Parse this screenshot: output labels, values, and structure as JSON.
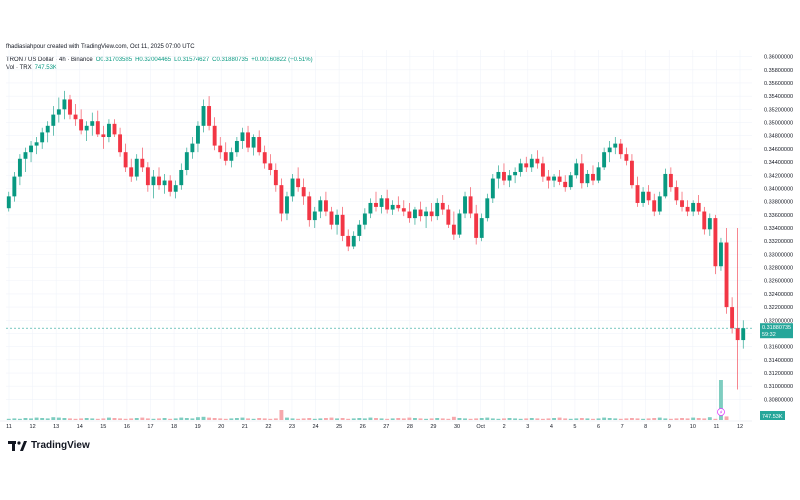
{
  "credit": "fhadiasiahpour created with TradingView.com, Oct 11, 2025 07:00 UTC",
  "legend": {
    "symbol": "TRON / US Dollar · 4h · Binance",
    "open": "O0.31703585",
    "high": "H0.32004465",
    "low": "L0.31574627",
    "close": "C0.31880735",
    "change": "+0.00160822 (+0.51%)"
  },
  "volume_legend": {
    "label": "Vol · TRX",
    "value": "747.53K"
  },
  "price_tag": {
    "price": "0.31880735",
    "countdown": "59:32"
  },
  "volume_tag": "747.53K",
  "logo_text": "TradingView",
  "colors": {
    "up": "#089981",
    "down": "#f23645",
    "up_vol": "#7ecdc0",
    "down_vol": "#f7a8ac",
    "tag": "#26a69a"
  },
  "chart_data": {
    "type": "candlestick",
    "timeframe": "4h",
    "ylim": [
      0.307,
      0.361
    ],
    "y_ticks": [
      "0.36000000",
      "0.35800000",
      "0.35600000",
      "0.35400000",
      "0.35200000",
      "0.35000000",
      "0.34800000",
      "0.34600000",
      "0.34400000",
      "0.34200000",
      "0.34000000",
      "0.33800000",
      "0.33600000",
      "0.33400000",
      "0.33200000",
      "0.33000000",
      "0.32800000",
      "0.32600000",
      "0.32400000",
      "0.32200000",
      "0.32000000",
      "0.31800000",
      "0.31600000",
      "0.31400000",
      "0.31200000",
      "0.31000000",
      "0.30800000"
    ],
    "x_ticks": [
      "11",
      "12",
      "13",
      "14",
      "15",
      "16",
      "17",
      "18",
      "19",
      "20",
      "21",
      "22",
      "23",
      "24",
      "25",
      "26",
      "27",
      "28",
      "29",
      "30",
      "Oct",
      "2",
      "3",
      "4",
      "5",
      "6",
      "7",
      "8",
      "9",
      "10",
      "11",
      "12"
    ],
    "candles": [
      [
        0.337,
        0.3395,
        0.3365,
        0.3388
      ],
      [
        0.3388,
        0.3425,
        0.338,
        0.3418
      ],
      [
        0.3418,
        0.3452,
        0.3405,
        0.3445
      ],
      [
        0.3445,
        0.3462,
        0.3425,
        0.3455
      ],
      [
        0.3455,
        0.3472,
        0.344,
        0.3465
      ],
      [
        0.3465,
        0.3478,
        0.3452,
        0.347
      ],
      [
        0.347,
        0.3492,
        0.346,
        0.3485
      ],
      [
        0.3485,
        0.3502,
        0.347,
        0.3495
      ],
      [
        0.3495,
        0.3525,
        0.348,
        0.3512
      ],
      [
        0.3512,
        0.3538,
        0.35,
        0.352
      ],
      [
        0.352,
        0.3548,
        0.3505,
        0.3535
      ],
      [
        0.3535,
        0.3542,
        0.3505,
        0.3512
      ],
      [
        0.3512,
        0.3528,
        0.3495,
        0.3505
      ],
      [
        0.3505,
        0.352,
        0.3482,
        0.3488
      ],
      [
        0.3488,
        0.3502,
        0.3472,
        0.3495
      ],
      [
        0.3495,
        0.3515,
        0.348,
        0.3502
      ],
      [
        0.3502,
        0.3518,
        0.3478,
        0.3482
      ],
      [
        0.3482,
        0.3495,
        0.346,
        0.3478
      ],
      [
        0.3478,
        0.3505,
        0.347,
        0.3498
      ],
      [
        0.3498,
        0.3505,
        0.3478,
        0.3482
      ],
      [
        0.3482,
        0.3492,
        0.3448,
        0.3455
      ],
      [
        0.3455,
        0.3468,
        0.3425,
        0.3432
      ],
      [
        0.3432,
        0.3445,
        0.341,
        0.3418
      ],
      [
        0.3418,
        0.3452,
        0.3412,
        0.3445
      ],
      [
        0.3445,
        0.3462,
        0.3425,
        0.3432
      ],
      [
        0.3432,
        0.344,
        0.3395,
        0.3405
      ],
      [
        0.3405,
        0.3428,
        0.3385,
        0.3418
      ],
      [
        0.3418,
        0.3432,
        0.3398,
        0.3405
      ],
      [
        0.3405,
        0.3422,
        0.3392,
        0.3412
      ],
      [
        0.3412,
        0.342,
        0.3388,
        0.3395
      ],
      [
        0.3395,
        0.3412,
        0.3385,
        0.3405
      ],
      [
        0.3405,
        0.3438,
        0.3398,
        0.3428
      ],
      [
        0.3428,
        0.3462,
        0.342,
        0.3455
      ],
      [
        0.3455,
        0.3478,
        0.3445,
        0.3468
      ],
      [
        0.3468,
        0.3502,
        0.3455,
        0.3495
      ],
      [
        0.3495,
        0.3535,
        0.3485,
        0.3525
      ],
      [
        0.3525,
        0.354,
        0.3488,
        0.3495
      ],
      [
        0.3495,
        0.3508,
        0.3458,
        0.3465
      ],
      [
        0.3465,
        0.3478,
        0.3445,
        0.3455
      ],
      [
        0.3455,
        0.347,
        0.3435,
        0.3442
      ],
      [
        0.3442,
        0.3462,
        0.3432,
        0.3455
      ],
      [
        0.3455,
        0.3478,
        0.3448,
        0.3472
      ],
      [
        0.3472,
        0.3492,
        0.346,
        0.3485
      ],
      [
        0.3485,
        0.3495,
        0.3455,
        0.3462
      ],
      [
        0.3462,
        0.3482,
        0.345,
        0.3478
      ],
      [
        0.3478,
        0.3488,
        0.345,
        0.3455
      ],
      [
        0.3455,
        0.3465,
        0.343,
        0.3438
      ],
      [
        0.3438,
        0.3452,
        0.342,
        0.3428
      ],
      [
        0.3428,
        0.3438,
        0.3395,
        0.3405
      ],
      [
        0.3405,
        0.3415,
        0.335,
        0.3362
      ],
      [
        0.3362,
        0.3395,
        0.3352,
        0.3388
      ],
      [
        0.3388,
        0.3422,
        0.338,
        0.3415
      ],
      [
        0.3415,
        0.3432,
        0.3395,
        0.3402
      ],
      [
        0.3402,
        0.3415,
        0.3375,
        0.3388
      ],
      [
        0.3388,
        0.3395,
        0.3342,
        0.3352
      ],
      [
        0.3352,
        0.3372,
        0.334,
        0.3365
      ],
      [
        0.3365,
        0.3388,
        0.3355,
        0.3382
      ],
      [
        0.3382,
        0.3395,
        0.3358,
        0.3365
      ],
      [
        0.3365,
        0.3372,
        0.3338,
        0.3345
      ],
      [
        0.3345,
        0.3368,
        0.333,
        0.336
      ],
      [
        0.336,
        0.3372,
        0.332,
        0.3328
      ],
      [
        0.3328,
        0.3338,
        0.3305,
        0.3312
      ],
      [
        0.3312,
        0.3335,
        0.3308,
        0.3328
      ],
      [
        0.3328,
        0.3352,
        0.332,
        0.3345
      ],
      [
        0.3345,
        0.337,
        0.3338,
        0.3362
      ],
      [
        0.3362,
        0.3385,
        0.3355,
        0.3378
      ],
      [
        0.3378,
        0.3395,
        0.3365,
        0.3372
      ],
      [
        0.3372,
        0.339,
        0.3362,
        0.3385
      ],
      [
        0.3385,
        0.3398,
        0.3362,
        0.3368
      ],
      [
        0.3368,
        0.3382,
        0.336,
        0.3375
      ],
      [
        0.3375,
        0.3388,
        0.3365,
        0.337
      ],
      [
        0.337,
        0.3382,
        0.3358,
        0.3365
      ],
      [
        0.3365,
        0.3378,
        0.3348,
        0.3355
      ],
      [
        0.3355,
        0.3372,
        0.3345,
        0.3368
      ],
      [
        0.3368,
        0.338,
        0.335,
        0.3358
      ],
      [
        0.3358,
        0.3372,
        0.334,
        0.3365
      ],
      [
        0.3365,
        0.3378,
        0.335,
        0.3358
      ],
      [
        0.3358,
        0.3385,
        0.3352,
        0.3378
      ],
      [
        0.3378,
        0.339,
        0.336,
        0.3368
      ],
      [
        0.3368,
        0.3375,
        0.334,
        0.3345
      ],
      [
        0.3345,
        0.3365,
        0.3322,
        0.333
      ],
      [
        0.333,
        0.3368,
        0.3325,
        0.3362
      ],
      [
        0.3362,
        0.3395,
        0.3355,
        0.3388
      ],
      [
        0.3388,
        0.3402,
        0.3355,
        0.3362
      ],
      [
        0.3362,
        0.3375,
        0.3315,
        0.3325
      ],
      [
        0.3325,
        0.3362,
        0.332,
        0.3355
      ],
      [
        0.3355,
        0.3392,
        0.335,
        0.3385
      ],
      [
        0.3385,
        0.3422,
        0.3378,
        0.3415
      ],
      [
        0.3415,
        0.3435,
        0.34,
        0.3425
      ],
      [
        0.3425,
        0.3438,
        0.3405,
        0.3412
      ],
      [
        0.3412,
        0.3428,
        0.3402,
        0.342
      ],
      [
        0.342,
        0.3432,
        0.3408,
        0.3425
      ],
      [
        0.3425,
        0.3445,
        0.3418,
        0.3438
      ],
      [
        0.3438,
        0.3448,
        0.3425,
        0.3432
      ],
      [
        0.3432,
        0.3452,
        0.3425,
        0.3445
      ],
      [
        0.3445,
        0.3458,
        0.343,
        0.3438
      ],
      [
        0.3438,
        0.3448,
        0.341,
        0.3418
      ],
      [
        0.3418,
        0.3428,
        0.34,
        0.3412
      ],
      [
        0.3412,
        0.3422,
        0.3402,
        0.3418
      ],
      [
        0.3418,
        0.3428,
        0.3405,
        0.341
      ],
      [
        0.341,
        0.342,
        0.3395,
        0.3402
      ],
      [
        0.3402,
        0.3425,
        0.3398,
        0.342
      ],
      [
        0.342,
        0.3445,
        0.3415,
        0.3438
      ],
      [
        0.3438,
        0.3452,
        0.34,
        0.3408
      ],
      [
        0.3408,
        0.3428,
        0.3402,
        0.3422
      ],
      [
        0.3422,
        0.3435,
        0.3405,
        0.3412
      ],
      [
        0.3412,
        0.344,
        0.3408,
        0.3432
      ],
      [
        0.3432,
        0.3462,
        0.3428,
        0.3455
      ],
      [
        0.3455,
        0.3472,
        0.344,
        0.3462
      ],
      [
        0.3462,
        0.3478,
        0.3452,
        0.3468
      ],
      [
        0.3468,
        0.3475,
        0.3445,
        0.3452
      ],
      [
        0.3452,
        0.3462,
        0.3435,
        0.3442
      ],
      [
        0.3442,
        0.3452,
        0.34,
        0.3405
      ],
      [
        0.3405,
        0.3418,
        0.3372,
        0.3378
      ],
      [
        0.3378,
        0.3402,
        0.3372,
        0.3395
      ],
      [
        0.3395,
        0.3405,
        0.3375,
        0.3382
      ],
      [
        0.3382,
        0.3392,
        0.3358,
        0.3365
      ],
      [
        0.3365,
        0.3395,
        0.336,
        0.3388
      ],
      [
        0.3388,
        0.343,
        0.3385,
        0.3422
      ],
      [
        0.3422,
        0.3432,
        0.3395,
        0.3402
      ],
      [
        0.3402,
        0.3412,
        0.3375,
        0.3382
      ],
      [
        0.3382,
        0.3395,
        0.3365,
        0.3372
      ],
      [
        0.3372,
        0.3382,
        0.3358,
        0.3365
      ],
      [
        0.3365,
        0.3382,
        0.3358,
        0.3378
      ],
      [
        0.3378,
        0.339,
        0.336,
        0.3365
      ],
      [
        0.3365,
        0.3372,
        0.333,
        0.3338
      ],
      [
        0.3338,
        0.3362,
        0.3328,
        0.3355
      ],
      [
        0.3355,
        0.336,
        0.327,
        0.3282
      ],
      [
        0.3282,
        0.3325,
        0.3275,
        0.3318
      ],
      [
        0.3318,
        0.334,
        0.321,
        0.322
      ],
      [
        0.322,
        0.3235,
        0.318,
        0.3188
      ],
      [
        0.3188,
        0.334,
        0.3095,
        0.317
      ],
      [
        0.317,
        0.32,
        0.3157,
        0.3188
      ]
    ],
    "volume_ratio": [
      3,
      4,
      3,
      5,
      4,
      6,
      5,
      4,
      7,
      6,
      5,
      4,
      3,
      4,
      5,
      4,
      3,
      4,
      6,
      5,
      4,
      3,
      4,
      5,
      6,
      4,
      3,
      4,
      5,
      3,
      4,
      6,
      5,
      4,
      7,
      8,
      6,
      5,
      4,
      3,
      4,
      5,
      6,
      4,
      3,
      5,
      4,
      3,
      4,
      25,
      6,
      4,
      3,
      4,
      5,
      3,
      4,
      5,
      6,
      4,
      5,
      3,
      4,
      5,
      4,
      6,
      5,
      4,
      3,
      4,
      5,
      4,
      6,
      5,
      4,
      3,
      4,
      5,
      4,
      3,
      8,
      5,
      4,
      3,
      4,
      5,
      6,
      4,
      3,
      4,
      5,
      4,
      3,
      4,
      5,
      4,
      3,
      4,
      5,
      6,
      4,
      3,
      4,
      5,
      4,
      3,
      4,
      6,
      5,
      4,
      3,
      4,
      5,
      4,
      3,
      4,
      5,
      6,
      4,
      3,
      4,
      5,
      4,
      6,
      5,
      4,
      7,
      3,
      100,
      9
    ]
  }
}
